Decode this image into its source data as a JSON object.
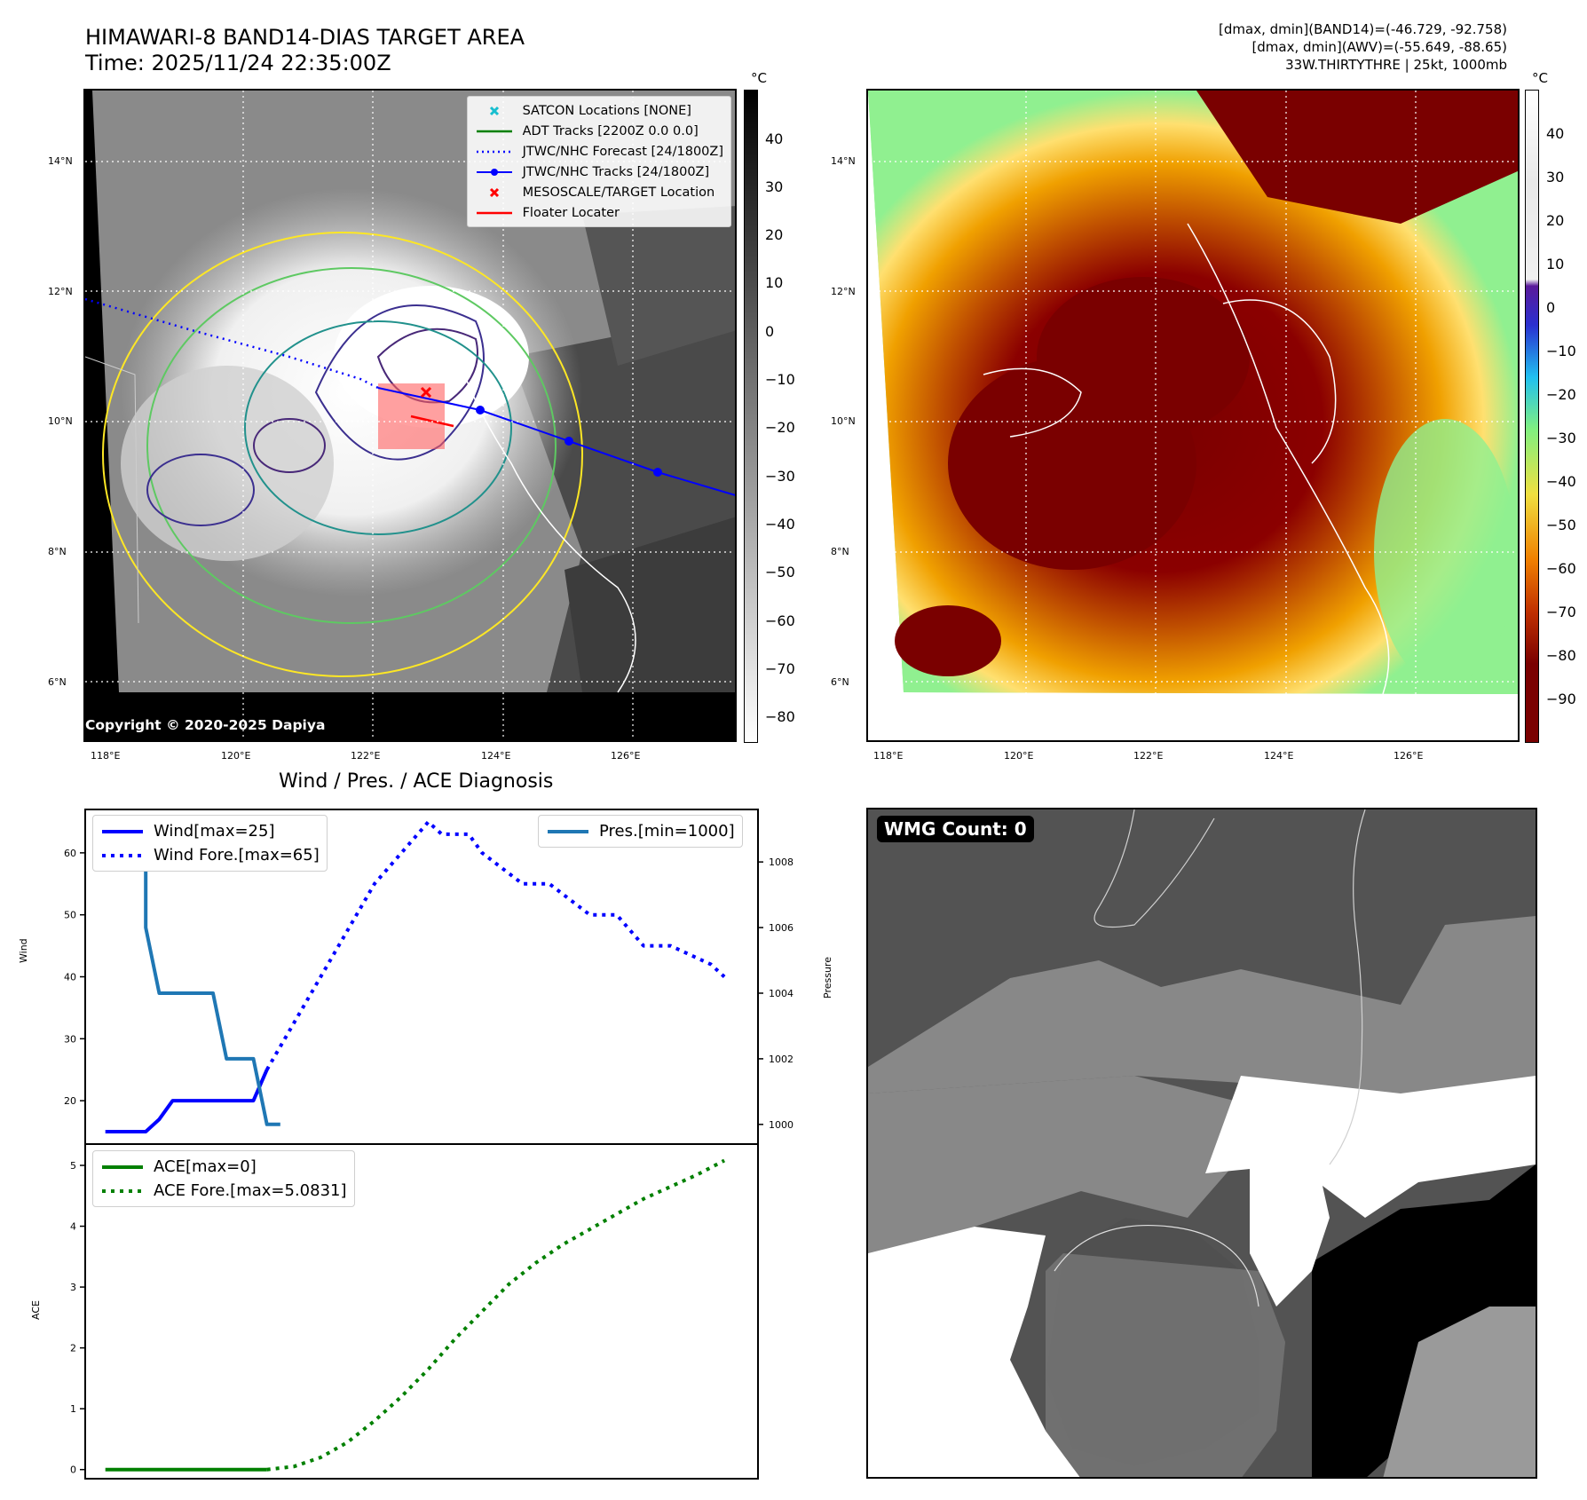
{
  "header": {
    "title_line1": "HIMAWARI-8 BAND14-DIAS TARGET AREA",
    "title_line2": "Time: 2025/11/24 22:35:00Z",
    "stats_line1": "[dmax, dmin](BAND14)=(-46.729, -92.758)",
    "stats_line2": "[dmax, dmin](AWV)=(-55.649, -88.65)",
    "stats_line3": "33W.THIRTYTHRE | 25kt, 1000mb"
  },
  "map_axes": {
    "lat_labels": [
      "14°N",
      "12°N",
      "10°N",
      "8°N",
      "6°N"
    ],
    "lon_labels": [
      "118°E",
      "120°E",
      "122°E",
      "124°E",
      "126°E"
    ]
  },
  "ir_panel": {
    "colorbar_unit": "°C",
    "colorbar_ticks": [
      "40",
      "30",
      "20",
      "10",
      "0",
      "−10",
      "−20",
      "−30",
      "−40",
      "−50",
      "−60",
      "−70",
      "−80"
    ],
    "copyright": "Copyright © 2020-2025 Dapiya",
    "legend": [
      {
        "label": "SATCON Locations [NONE]",
        "color": "#17becf",
        "marker": "x"
      },
      {
        "label": "ADT Tracks [2200Z 0.0 0.0]",
        "color": "#008000",
        "marker": "line"
      },
      {
        "label": "JTWC/NHC Forecast [24/1800Z]",
        "color": "#0000ff",
        "marker": "dotted"
      },
      {
        "label": "JTWC/NHC Tracks [24/1800Z]",
        "color": "#0000ff",
        "marker": "line-dot"
      },
      {
        "label": "MESOSCALE/TARGET Location",
        "color": "#ff0000",
        "marker": "x"
      },
      {
        "label": "Floater Locater",
        "color": "#ff0000",
        "marker": "line"
      }
    ]
  },
  "ir_enhanced_panel": {
    "colorbar_unit": "°C",
    "colorbar_ticks": [
      "40",
      "30",
      "20",
      "10",
      "0",
      "−10",
      "−20",
      "−30",
      "−40",
      "−50",
      "−60",
      "−70",
      "−80",
      "−90"
    ]
  },
  "diagnosis": {
    "title": "Wind / Pres. / ACE Diagnosis",
    "wind_ylabel": "Wind",
    "pressure_ylabel": "Pressure",
    "ace_ylabel": "ACE",
    "legend_wind": "Wind[max=25]",
    "legend_wind_fore": "Wind Fore.[max=65]",
    "legend_pres": "Pres.[min=1000]",
    "legend_ace": "ACE[max=0]",
    "legend_ace_fore": "ACE Fore.[max=5.0831]",
    "colors": {
      "wind": "#0000ff",
      "pres": "#1f77b4",
      "ace": "#008000"
    }
  },
  "wmg": {
    "label": "WMG Count: 0"
  },
  "chart_data": [
    {
      "type": "line",
      "panel": "wind",
      "ylim": [
        13,
        67
      ],
      "yticks": [
        20,
        30,
        40,
        50,
        60
      ],
      "series": [
        {
          "name": "Wind[max=25]",
          "style": "solid",
          "color": "#0000ff",
          "x": [
            0,
            1,
            2,
            3,
            4,
            5,
            6,
            7,
            8,
            9,
            10,
            11,
            12
          ],
          "y": [
            15,
            15,
            15,
            15,
            17,
            20,
            20,
            20,
            20,
            20,
            20,
            20,
            25
          ]
        },
        {
          "name": "Wind Fore.[max=65]",
          "style": "dotted",
          "color": "#0000ff",
          "x": [
            12,
            16,
            20,
            24,
            25,
            27,
            28,
            31,
            33,
            36,
            38,
            40,
            41,
            42,
            45,
            46
          ],
          "y": [
            25,
            40,
            55,
            65,
            63,
            63,
            60,
            55,
            55,
            50,
            50,
            45,
            45,
            45,
            42,
            40
          ]
        }
      ]
    },
    {
      "type": "line",
      "panel": "pressure",
      "ylim": [
        999.4,
        1009.6
      ],
      "yticks": [
        1000,
        1002,
        1004,
        1006,
        1008
      ],
      "series": [
        {
          "name": "Pres.[min=1000]",
          "style": "solid",
          "color": "#1f77b4",
          "x": [
            2,
            3,
            3,
            4,
            5,
            6,
            7,
            8,
            9,
            10,
            11,
            12,
            13
          ],
          "y": [
            1009,
            1009,
            1006,
            1004,
            1004,
            1004,
            1004,
            1004,
            1002,
            1002,
            1002,
            1000,
            1000
          ]
        }
      ]
    },
    {
      "type": "line",
      "panel": "ace",
      "ylim": [
        -0.15,
        5.35
      ],
      "yticks": [
        0,
        1,
        2,
        3,
        4,
        5
      ],
      "series": [
        {
          "name": "ACE[max=0]",
          "style": "solid",
          "color": "#008000",
          "x": [
            0,
            12
          ],
          "y": [
            0,
            0
          ]
        },
        {
          "name": "ACE Fore.[max=5.0831]",
          "style": "dotted",
          "color": "#008000",
          "x": [
            12,
            14,
            16,
            18,
            20,
            22,
            24,
            26,
            28,
            30,
            32,
            34,
            36,
            38,
            40,
            42,
            44,
            46
          ],
          "y": [
            0,
            0.05,
            0.2,
            0.45,
            0.8,
            1.2,
            1.65,
            2.15,
            2.6,
            3.05,
            3.4,
            3.7,
            3.95,
            4.2,
            4.45,
            4.65,
            4.85,
            5.08
          ]
        }
      ]
    }
  ]
}
